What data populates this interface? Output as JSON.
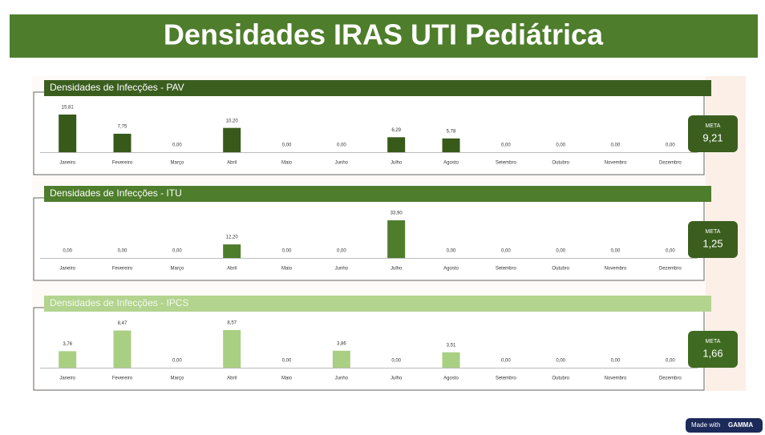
{
  "title": "Densidades IRAS UTI Pediátrica",
  "footer": {
    "text": "Made with",
    "brand": "GAMMA"
  },
  "chart_data": [
    {
      "type": "bar",
      "title": "Densidades de Infecções - PAV",
      "color": "#375a1a",
      "header_color": "#3b5e1f",
      "header_text_color": "#ffffff",
      "categories": [
        "Janeiro",
        "Fevereiro",
        "Março",
        "Abril",
        "Maio",
        "Junho",
        "Julho",
        "Agosto",
        "Setembro",
        "Outubro",
        "Novembro",
        "Dezembro"
      ],
      "values": [
        15.81,
        7.75,
        0,
        10.2,
        0,
        0,
        6.29,
        5.78,
        0,
        0,
        0,
        0
      ],
      "value_labels": [
        "15,81",
        "7,75",
        "0,00",
        "10,20",
        "0,00",
        "0,00",
        "6,29",
        "5,78",
        "0,00",
        "0,00",
        "0,00",
        "0,00"
      ],
      "meta_label": "META",
      "meta_value": "9,21"
    },
    {
      "type": "bar",
      "title": "Densidades de Infecções - ITU",
      "color": "#4e7d2b",
      "header_color": "#4e7d2b",
      "header_text_color": "#ffffff",
      "categories": [
        "Janeiro",
        "Fevereiro",
        "Março",
        "Abril",
        "Maio",
        "Junho",
        "Julho",
        "Agosto",
        "Setembro",
        "Outubro",
        "Novembro",
        "Dezembro"
      ],
      "values": [
        0,
        0,
        0,
        12.2,
        0,
        0,
        33.9,
        0,
        0,
        0,
        0,
        0
      ],
      "value_labels": [
        "0,00",
        "0,00",
        "0,00",
        "12,20",
        "0,00",
        "0,00",
        "33,90",
        "0,00",
        "0,00",
        "0,00",
        "0,00",
        "0,00"
      ],
      "meta_label": "META",
      "meta_value": "1,25"
    },
    {
      "type": "bar",
      "title": "Densidades de Infecções - IPCS",
      "color": "#a9cf83",
      "header_color": "#b2d48e",
      "header_text_color": "#f4f9ee",
      "categories": [
        "Janeiro",
        "Fevereiro",
        "Março",
        "Abril",
        "Maio",
        "Junho",
        "Julho",
        "Agosto",
        "Setembro",
        "Outubro",
        "Novembro",
        "Dezembro"
      ],
      "values": [
        3.76,
        8.47,
        0,
        8.57,
        0,
        3.86,
        0,
        3.51,
        0,
        0,
        0,
        0
      ],
      "value_labels": [
        "3,76",
        "8,47",
        "0,00",
        "8,57",
        "0,00",
        "3,86",
        "0,00",
        "3,51",
        "0,00",
        "0,00",
        "0,00",
        "0,00"
      ],
      "meta_label": "META",
      "meta_value": "1,66"
    }
  ]
}
